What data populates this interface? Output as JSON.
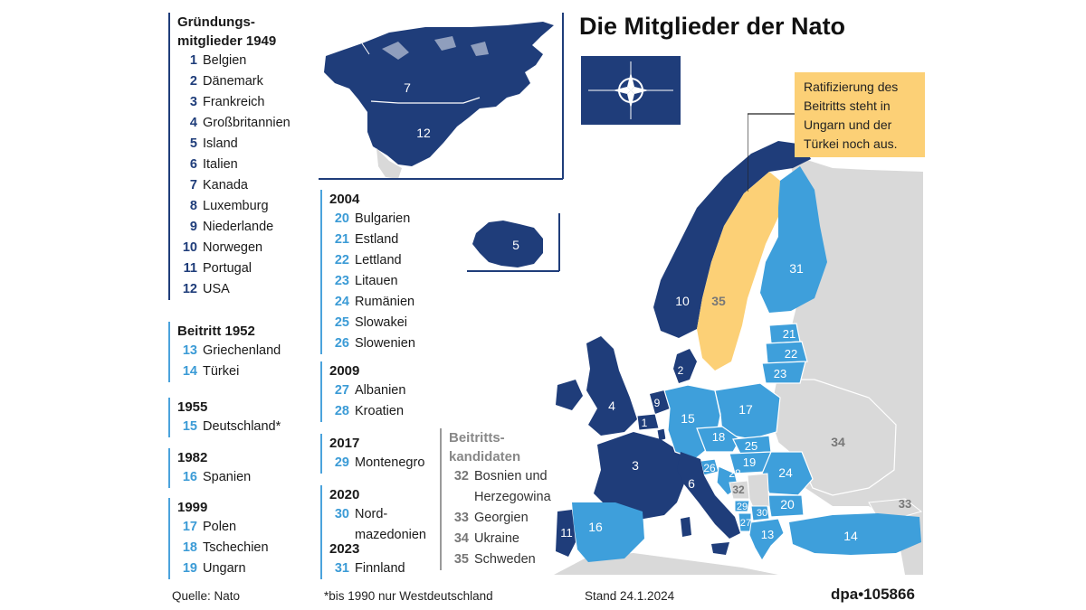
{
  "title": "Die Mitglieder der Nato",
  "groups": [
    {
      "heading": "Gründungs-\nmitglieder 1949",
      "tone": "dark",
      "items": [
        {
          "num": "1",
          "name": "Belgien"
        },
        {
          "num": "2",
          "name": "Dänemark"
        },
        {
          "num": "3",
          "name": "Frankreich"
        },
        {
          "num": "4",
          "name": "Großbritannien"
        },
        {
          "num": "5",
          "name": "Island"
        },
        {
          "num": "6",
          "name": "Italien"
        },
        {
          "num": "7",
          "name": "Kanada"
        },
        {
          "num": "8",
          "name": "Luxemburg"
        },
        {
          "num": "9",
          "name": "Niederlande"
        },
        {
          "num": "10",
          "name": "Norwegen"
        },
        {
          "num": "11",
          "name": "Portugal"
        },
        {
          "num": "12",
          "name": "USA"
        }
      ]
    },
    {
      "heading": "Beitritt 1952",
      "tone": "light",
      "items": [
        {
          "num": "13",
          "name": "Griechenland"
        },
        {
          "num": "14",
          "name": "Türkei"
        }
      ]
    },
    {
      "heading": "1955",
      "tone": "light",
      "items": [
        {
          "num": "15",
          "name": "Deutschland*"
        }
      ]
    },
    {
      "heading": "1982",
      "tone": "light",
      "items": [
        {
          "num": "16",
          "name": "Spanien"
        }
      ]
    },
    {
      "heading": "1999",
      "tone": "light",
      "items": [
        {
          "num": "17",
          "name": "Polen"
        },
        {
          "num": "18",
          "name": "Tschechien"
        },
        {
          "num": "19",
          "name": "Ungarn"
        }
      ]
    },
    {
      "heading": "2004",
      "tone": "light",
      "items": [
        {
          "num": "20",
          "name": "Bulgarien"
        },
        {
          "num": "21",
          "name": "Estland"
        },
        {
          "num": "22",
          "name": "Lettland"
        },
        {
          "num": "23",
          "name": "Litauen"
        },
        {
          "num": "24",
          "name": "Rumänien"
        },
        {
          "num": "25",
          "name": "Slowakei"
        },
        {
          "num": "26",
          "name": "Slowenien"
        }
      ]
    },
    {
      "heading": "2009",
      "tone": "light",
      "items": [
        {
          "num": "27",
          "name": "Albanien"
        },
        {
          "num": "28",
          "name": "Kroatien"
        }
      ]
    },
    {
      "heading": "2017",
      "tone": "light",
      "items": [
        {
          "num": "29",
          "name": "Montenegro"
        }
      ]
    },
    {
      "heading": "2020",
      "tone": "light",
      "items": [
        {
          "num": "30",
          "name": "Nord-\nmazedonien"
        }
      ]
    },
    {
      "heading": "2023",
      "tone": "light",
      "items": [
        {
          "num": "31",
          "name": "Finnland"
        }
      ]
    }
  ],
  "candidates": {
    "heading": "Beitritts-\nkandidaten",
    "items": [
      {
        "num": "32",
        "name": "Bosnien und\nHerzegowina"
      },
      {
        "num": "33",
        "name": "Georgien"
      },
      {
        "num": "34",
        "name": "Ukraine"
      },
      {
        "num": "35",
        "name": "Schweden"
      }
    ]
  },
  "callout": "Ratifizierung des Beitritts steht in Ungarn und der Türkei noch aus.",
  "footer": {
    "source": "Quelle: Nato",
    "note": "*bis 1990 nur Westdeutschland",
    "date": "Stand 24.1.2024",
    "id": "dpa•105866"
  },
  "map_labels": [
    "1",
    "2",
    "3",
    "4",
    "5",
    "6",
    "7",
    "8",
    "9",
    "10",
    "11",
    "12",
    "13",
    "14",
    "15",
    "16",
    "17",
    "18",
    "19",
    "20",
    "21",
    "22",
    "23",
    "24",
    "25",
    "26",
    "27",
    "28",
    "29",
    "30",
    "31",
    "32",
    "33",
    "34",
    "35"
  ],
  "colors": {
    "founding": "#1f3d7a",
    "joined": "#3e9fdb",
    "candidate_sweden": "#fcd076",
    "candidate": "#d9d9d9",
    "water": "#ffffff"
  }
}
